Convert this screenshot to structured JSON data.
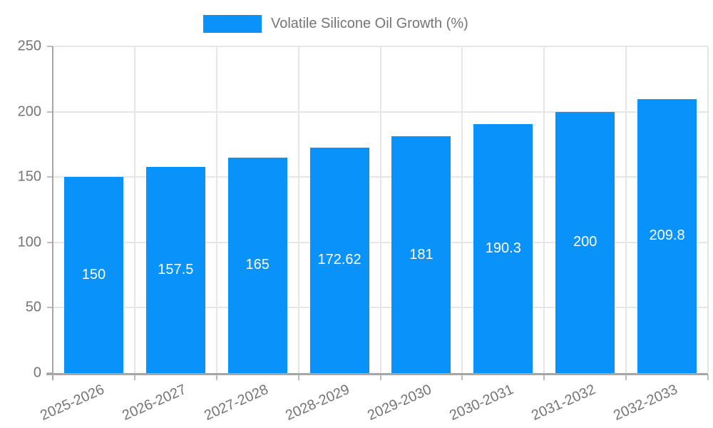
{
  "legend": {
    "label": "Volatile Silicone Oil Growth (%)"
  },
  "colors": {
    "series": "#0992fa",
    "grid": "#e6e6e6",
    "axis": "#a6a6a6",
    "tick_text": "#757575",
    "bar_label_text": "#ffffff"
  },
  "chart_data": {
    "type": "bar",
    "title": "",
    "xlabel": "",
    "ylabel": "",
    "categories": [
      "2025-2026",
      "2026-2027",
      "2027-2028",
      "2028-2029",
      "2029-2030",
      "2030-2031",
      "2031-2032",
      "2032-2033"
    ],
    "values": [
      150,
      157.5,
      165,
      172.62,
      181,
      190.3,
      200,
      209.8
    ],
    "value_labels": [
      "150",
      "157.5",
      "165",
      "172.62",
      "181",
      "190.3",
      "200",
      "209.8"
    ],
    "series_name": "Volatile Silicone Oil Growth (%)",
    "ylim": [
      0,
      250
    ],
    "yticks": [
      0,
      50,
      100,
      150,
      200,
      250
    ],
    "grid": true,
    "legend_position": "top",
    "bar_label_placement": "center-inside",
    "x_label_rotation_deg": -24
  }
}
